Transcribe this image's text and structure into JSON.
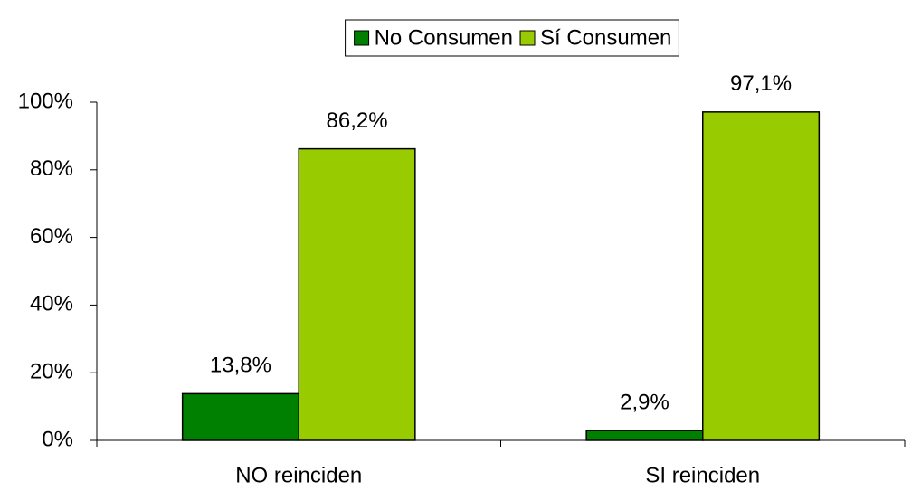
{
  "chart_data": {
    "type": "bar",
    "categories": [
      "NO reinciden",
      "SI reinciden"
    ],
    "series": [
      {
        "name": "No Consumen",
        "color": "#008000",
        "values": [
          13.8,
          2.9
        ],
        "value_labels": [
          "13,8%",
          "2,9%"
        ]
      },
      {
        "name": "Sí Consumen",
        "color": "#99cc00",
        "values": [
          86.2,
          97.1
        ],
        "value_labels": [
          "86,2%",
          "97,1%"
        ]
      }
    ],
    "ylim": [
      0,
      100
    ],
    "yticks": [
      {
        "value": 0,
        "label": "0%"
      },
      {
        "value": 20,
        "label": "20%"
      },
      {
        "value": 40,
        "label": "40%"
      },
      {
        "value": 60,
        "label": "60%"
      },
      {
        "value": 80,
        "label": "80%"
      },
      {
        "value": 100,
        "label": "100%"
      }
    ],
    "legend": "top"
  }
}
